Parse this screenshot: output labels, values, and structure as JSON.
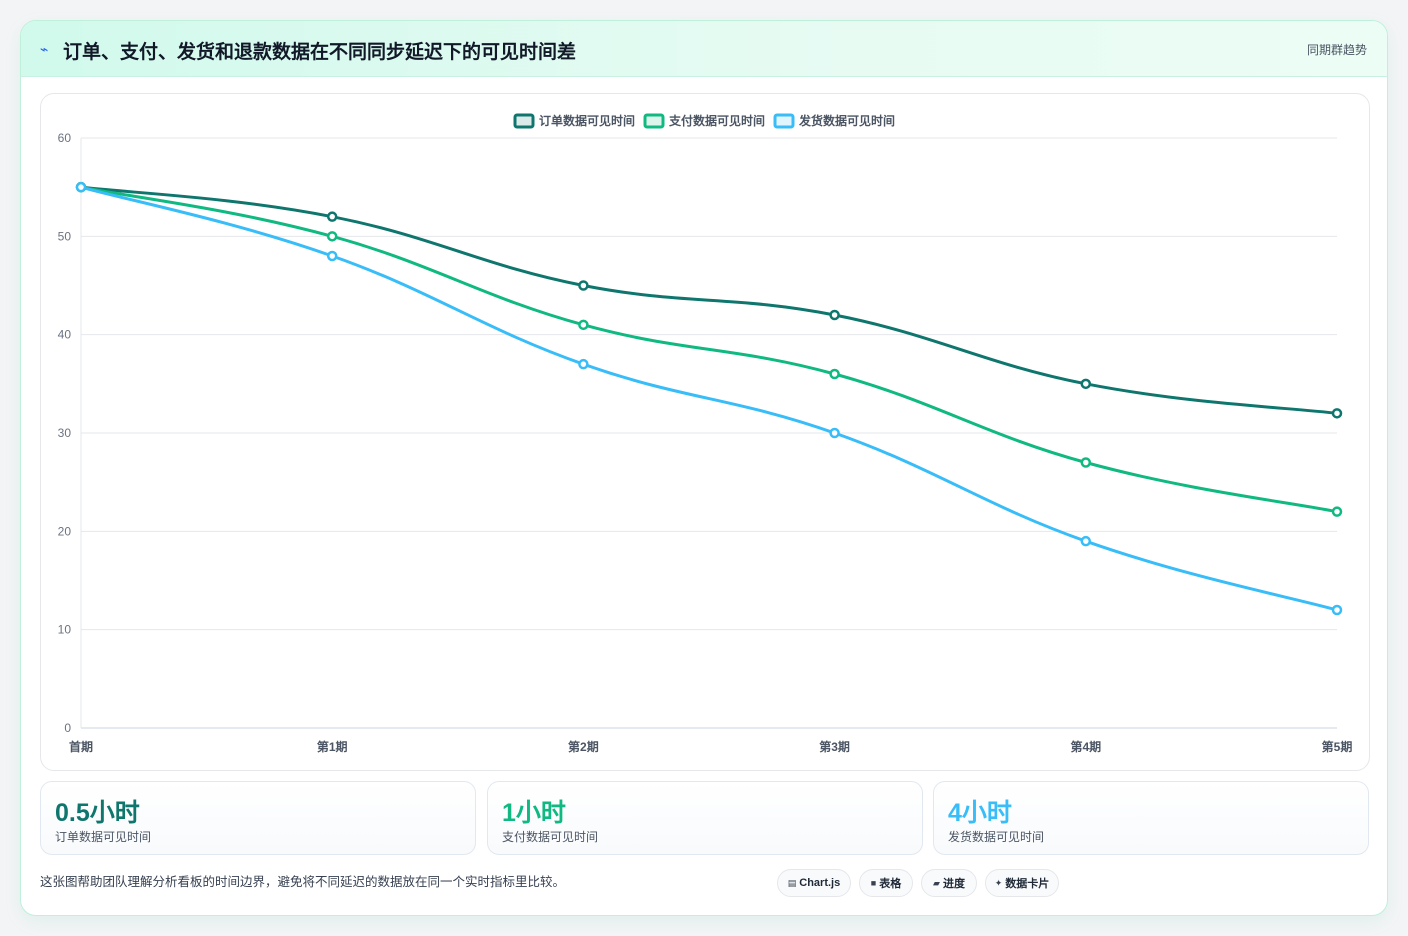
{
  "header": {
    "title": "订单、支付、发货和退款数据在不同同步延迟下的可见时间差",
    "tag": "同期群趋势",
    "icon": "lightning-icon"
  },
  "chart_data": {
    "type": "line",
    "title": "",
    "xlabel": "",
    "ylabel": "",
    "categories": [
      "首期",
      "第1期",
      "第2期",
      "第3期",
      "第4期",
      "第5期"
    ],
    "ylim": [
      0,
      60
    ],
    "yticks": [
      0,
      10,
      20,
      30,
      40,
      50,
      60
    ],
    "grid": true,
    "legend_position": "top",
    "smooth": true,
    "series": [
      {
        "name": "订单数据可见时间",
        "color": "#0f766e",
        "values": [
          55,
          52,
          45,
          42,
          35,
          32
        ]
      },
      {
        "name": "支付数据可见时间",
        "color": "#10b981",
        "values": [
          55,
          50,
          41,
          36,
          27,
          22
        ]
      },
      {
        "name": "发货数据可见时间",
        "color": "#38bdf8",
        "values": [
          55,
          48,
          37,
          30,
          19,
          12
        ]
      }
    ]
  },
  "stats": [
    {
      "value": "0.5小时",
      "label": "订单数据可见时间",
      "color": "#0f766e"
    },
    {
      "value": "1小时",
      "label": "支付数据可见时间",
      "color": "#10b981"
    },
    {
      "value": "4小时",
      "label": "发货数据可见时间",
      "color": "#38bdf8"
    }
  ],
  "footnote": "这张图帮助团队理解分析看板的时间边界，避免将不同延迟的数据放在同一个实时指标里比较。",
  "chips": [
    {
      "icon": "chart-icon",
      "glyph": "▤",
      "label": "Chart.js"
    },
    {
      "icon": "table-icon",
      "glyph": "■",
      "label": "表格"
    },
    {
      "icon": "progress-icon",
      "glyph": "▰",
      "label": "进度"
    },
    {
      "icon": "sparkle-icon",
      "glyph": "✦",
      "label": "数据卡片"
    }
  ]
}
